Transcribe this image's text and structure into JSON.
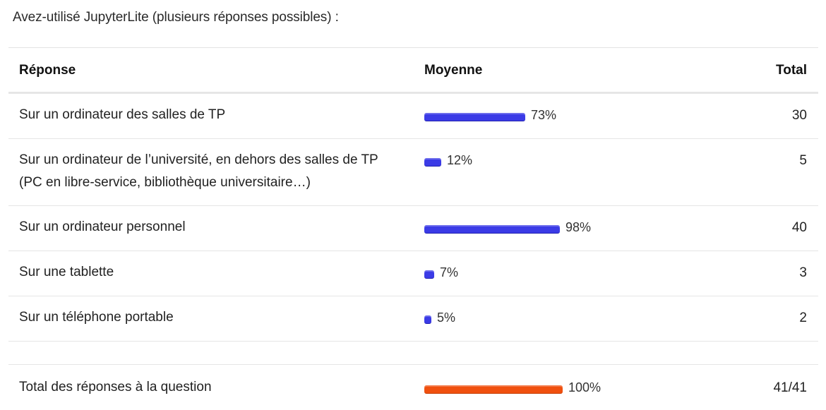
{
  "question": {
    "title": "Avez-utilisé JupyterLite (plusieurs réponses possibles) :"
  },
  "table": {
    "headers": {
      "response": "Réponse",
      "average": "Moyenne",
      "total": "Total"
    },
    "rows": [
      {
        "label": "Sur un ordinateur des salles de TP",
        "percent_text": "73%",
        "percent": 73,
        "total": "30"
      },
      {
        "label": "Sur un ordinateur de l’université, en dehors des salles de TP (PC en libre-service, bibliothèque universitaire…)",
        "percent_text": "12%",
        "percent": 12,
        "total": "5"
      },
      {
        "label": "Sur un ordinateur personnel",
        "percent_text": "98%",
        "percent": 98,
        "total": "40"
      },
      {
        "label": "Sur une tablette",
        "percent_text": "7%",
        "percent": 7,
        "total": "3"
      },
      {
        "label": "Sur un téléphone portable",
        "percent_text": "5%",
        "percent": 5,
        "total": "2"
      }
    ],
    "summary": {
      "label": "Total des réponses à la question",
      "percent_text": "100%",
      "percent": 100,
      "total": "41/41"
    }
  },
  "colors": {
    "bar": "#3b3be6",
    "summary_bar": "#f0500f"
  }
}
